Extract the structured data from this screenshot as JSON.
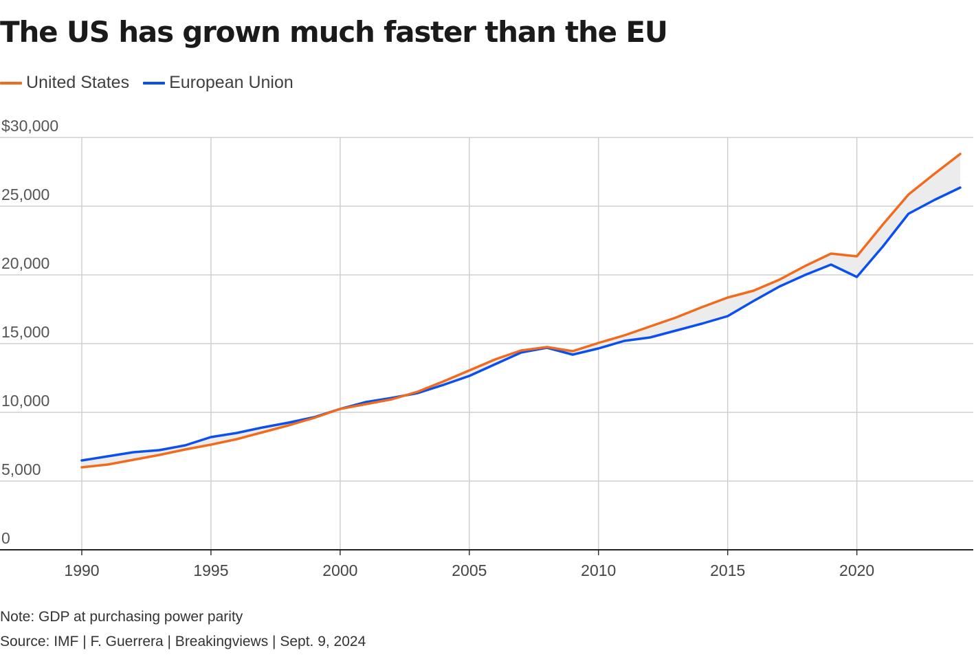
{
  "chart_data": {
    "type": "line",
    "title": "The US has grown much faster than the EU",
    "x": [
      1990,
      1991,
      1992,
      1993,
      1994,
      1995,
      1996,
      1997,
      1998,
      1999,
      2000,
      2001,
      2002,
      2003,
      2004,
      2005,
      2006,
      2007,
      2008,
      2009,
      2010,
      2011,
      2012,
      2013,
      2014,
      2015,
      2016,
      2017,
      2018,
      2019,
      2020,
      2021,
      2022,
      2023,
      2024
    ],
    "series": [
      {
        "name": "United States",
        "color": "#f26a1b",
        "values": [
          6000,
          6200,
          6550,
          6900,
          7300,
          7650,
          8050,
          8550,
          9050,
          9600,
          10250,
          10600,
          10950,
          11500,
          12250,
          13050,
          13850,
          14500,
          14750,
          14450,
          15050,
          15600,
          16250,
          16900,
          17650,
          18350,
          18850,
          19650,
          20650,
          21550,
          21350,
          23650,
          25850,
          27350,
          28800
        ],
        "label": "United States"
      },
      {
        "name": "European Union",
        "color": "#0a4ff0",
        "values": [
          6500,
          6800,
          7100,
          7250,
          7600,
          8200,
          8500,
          8900,
          9250,
          9650,
          10250,
          10750,
          11050,
          11400,
          12000,
          12650,
          13500,
          14350,
          14700,
          14200,
          14650,
          15200,
          15450,
          15950,
          16450,
          17000,
          18100,
          19150,
          20000,
          20750,
          19850,
          22050,
          24450,
          25450,
          26350
        ],
        "label": "European Union"
      }
    ],
    "gap_fill_color": "#ececec",
    "ylim": [
      0,
      30000
    ],
    "xlim": [
      1990,
      2024
    ],
    "yticks": [
      0,
      5000,
      10000,
      15000,
      20000,
      25000,
      30000
    ],
    "ytick_labels": [
      "0",
      "5,000",
      "10,000",
      "15,000",
      "20,000",
      "25,000",
      "$30,000"
    ],
    "xticks": [
      1990,
      1995,
      2000,
      2005,
      2010,
      2015,
      2020
    ],
    "xtick_labels": [
      "1990",
      "1995",
      "2000",
      "2005",
      "2010",
      "2015",
      "2020"
    ],
    "xlabel": "",
    "ylabel": "",
    "grid": true,
    "legend_position": "top-left",
    "note": "Note: GDP at purchasing power parity",
    "source": "Source: IMF | F. Guerrera | Breakingviews | Sept. 9, 2024"
  }
}
